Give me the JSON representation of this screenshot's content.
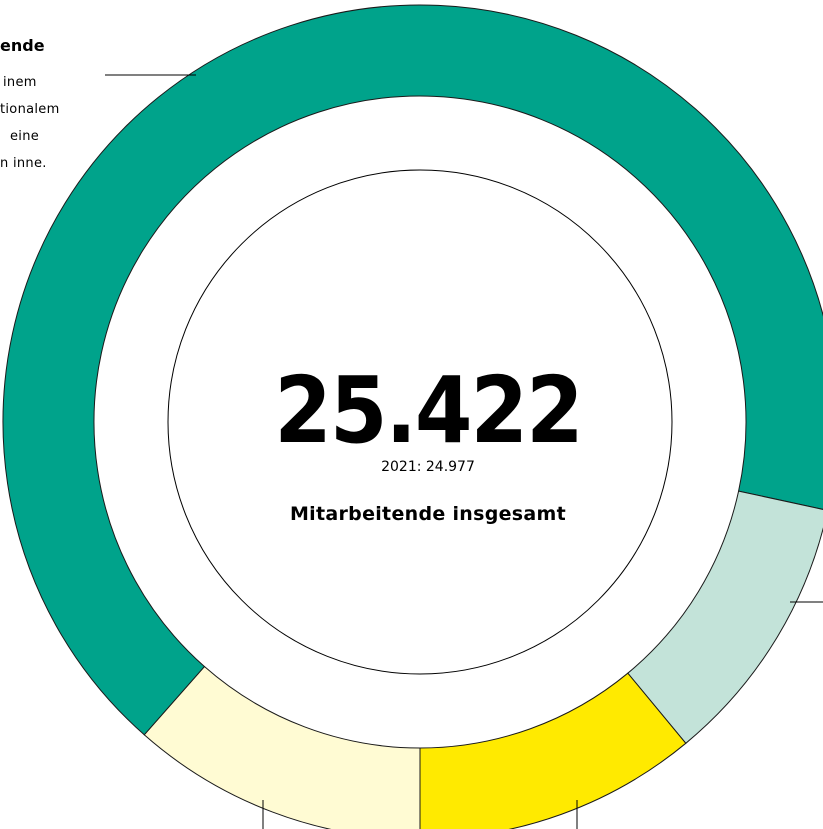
{
  "chart_data": {
    "type": "donut",
    "values": [
      11.5,
      66.9,
      10.6,
      11.0
    ],
    "colors": [
      "#fffbd3",
      "#00a38b",
      "#c3e3d9",
      "#ffea00"
    ],
    "center_value": "25.422",
    "center_previous": "2021: 24.977",
    "center_label": "Mitarbeitende insgesamt",
    "side_note": {
      "title": "ende",
      "lines": [
        "inem",
        "tionalem",
        "eine",
        "n inne."
      ]
    }
  }
}
